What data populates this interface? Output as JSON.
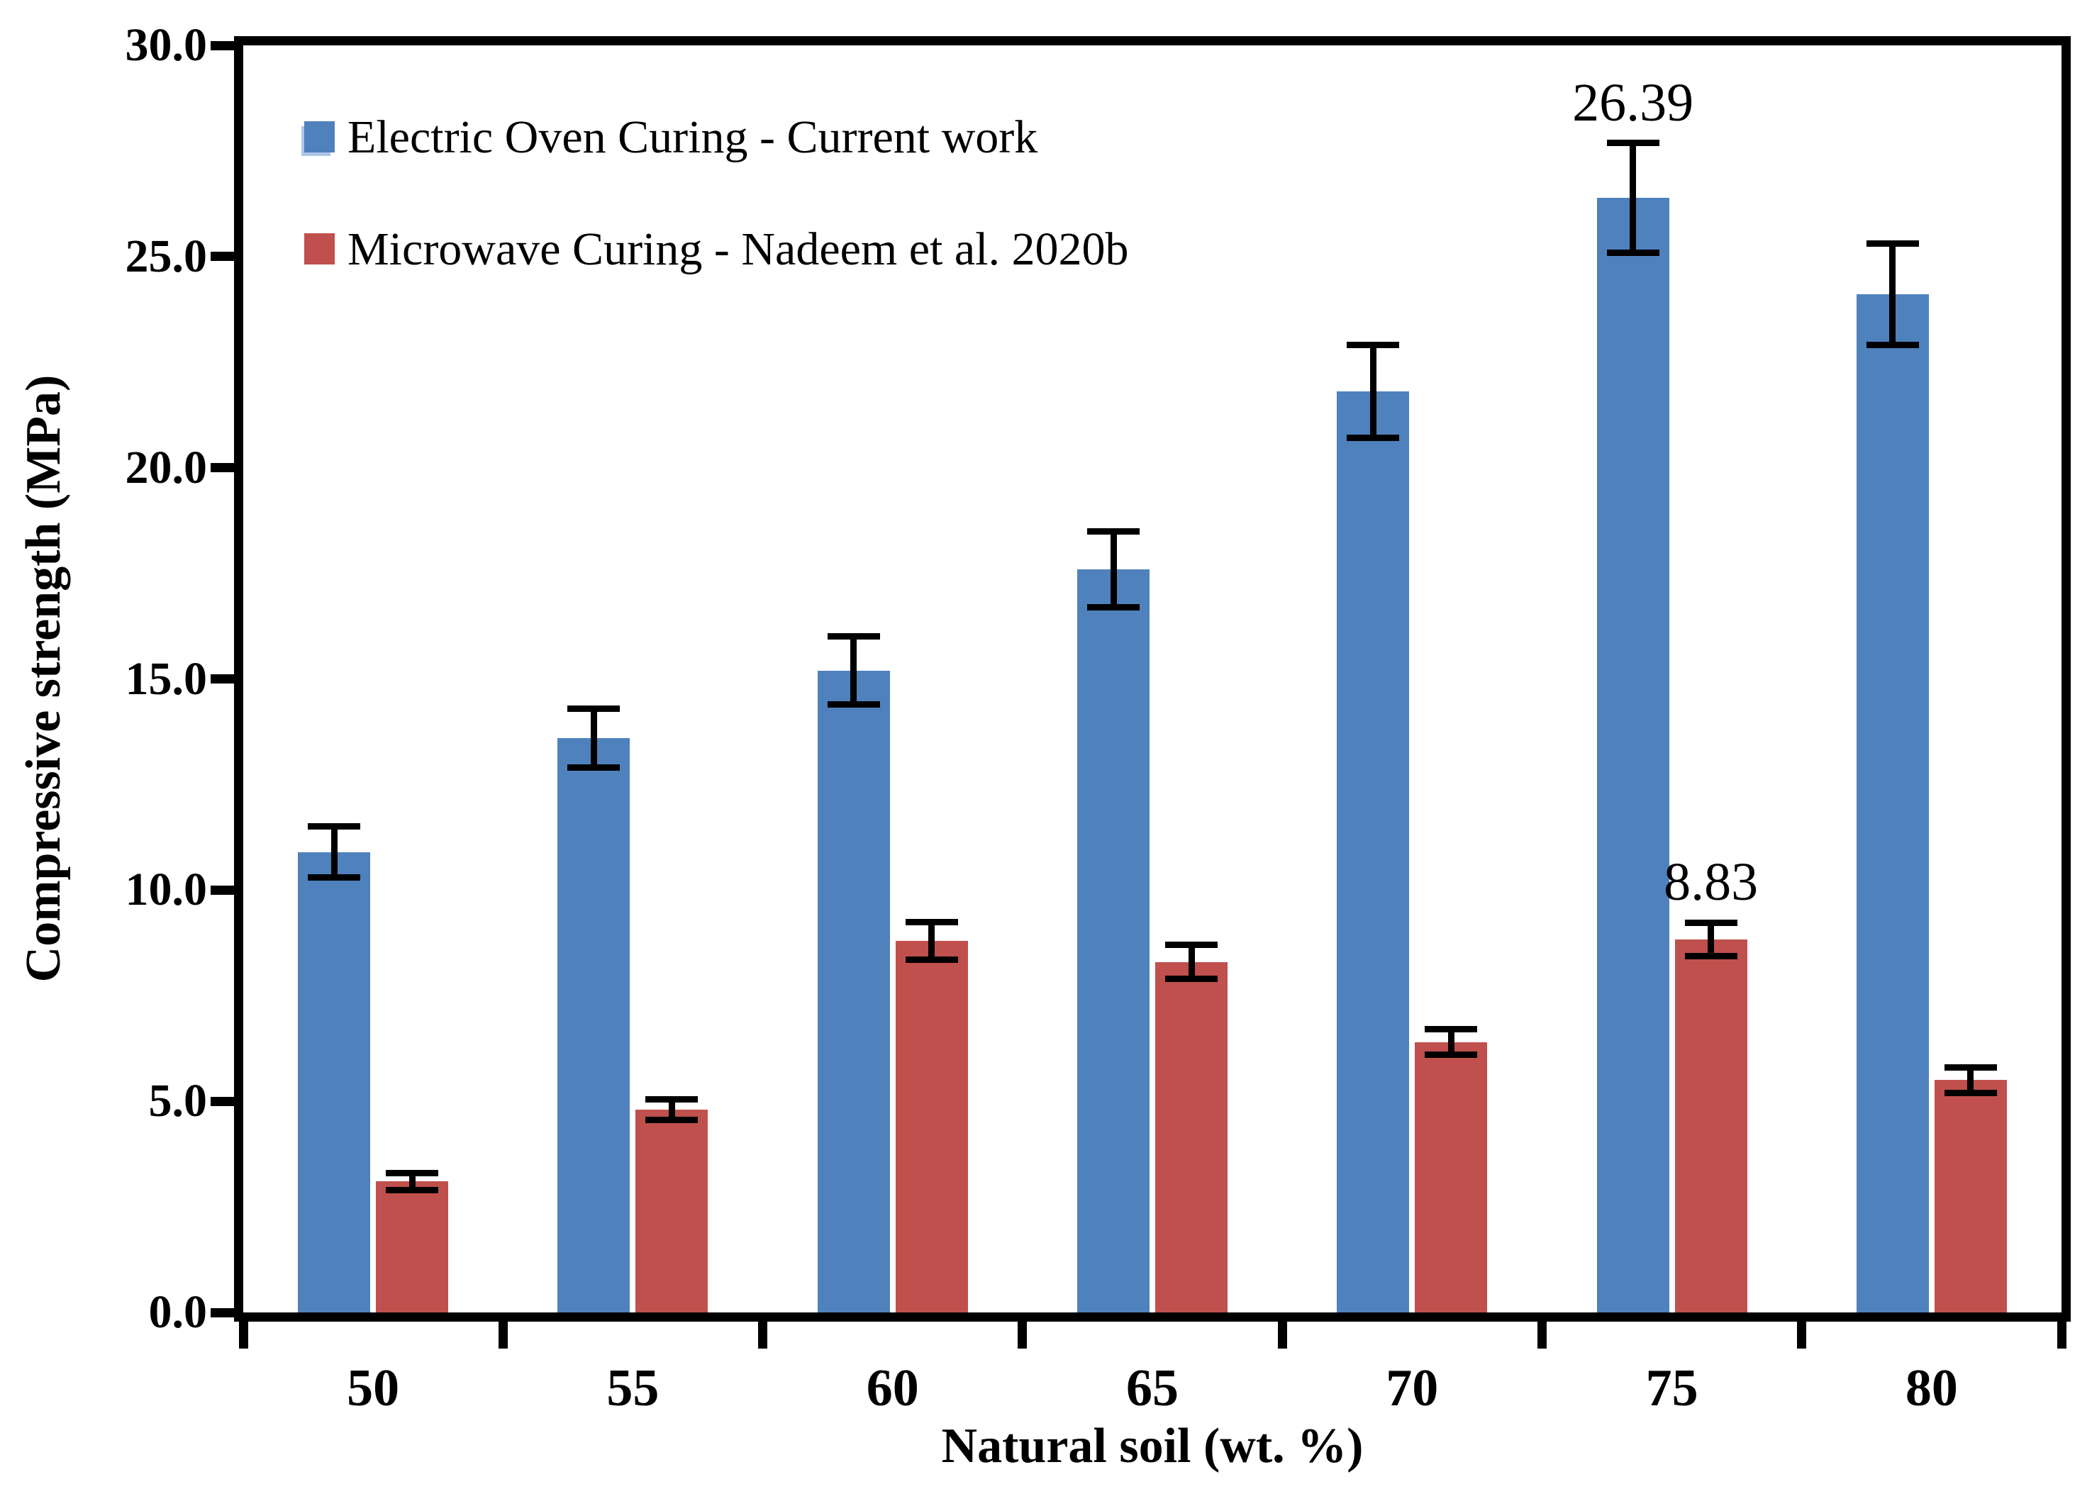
{
  "figure": {
    "background": "#ffffff",
    "axis_color": "#000000",
    "error_bar_color": "#000000"
  },
  "chart_data": {
    "type": "bar",
    "title": "",
    "xlabel": "Natural soil (wt. %)",
    "ylabel": "Compressive strength (MPa)",
    "categories": [
      "50",
      "55",
      "60",
      "65",
      "70",
      "75",
      "80"
    ],
    "ylim": [
      0,
      30
    ],
    "ytick_step": 5,
    "ytick_labels": [
      "0.0",
      "5.0",
      "10.0",
      "15.0",
      "20.0",
      "25.0",
      "30.0"
    ],
    "grid": false,
    "legend_position": "top-left-inside",
    "series": [
      {
        "name": "Electric Oven Curing - Current work",
        "color": "#4F81BD",
        "values": [
          10.9,
          13.6,
          15.2,
          17.6,
          21.8,
          26.39,
          24.1
        ],
        "errors": [
          0.6,
          0.7,
          0.8,
          0.9,
          1.1,
          1.3,
          1.2
        ],
        "data_labels": [
          "",
          "",
          "",
          "",
          "",
          "26.39",
          ""
        ]
      },
      {
        "name": "Microwave Curing - Nadeem et al. 2020b",
        "color": "#C0504D",
        "values": [
          3.1,
          4.8,
          8.8,
          8.3,
          6.4,
          8.83,
          5.5
        ],
        "errors": [
          0.2,
          0.25,
          0.45,
          0.4,
          0.3,
          0.4,
          0.3
        ],
        "data_labels": [
          "",
          "",
          "",
          "",
          "",
          "8.83",
          ""
        ]
      }
    ]
  }
}
